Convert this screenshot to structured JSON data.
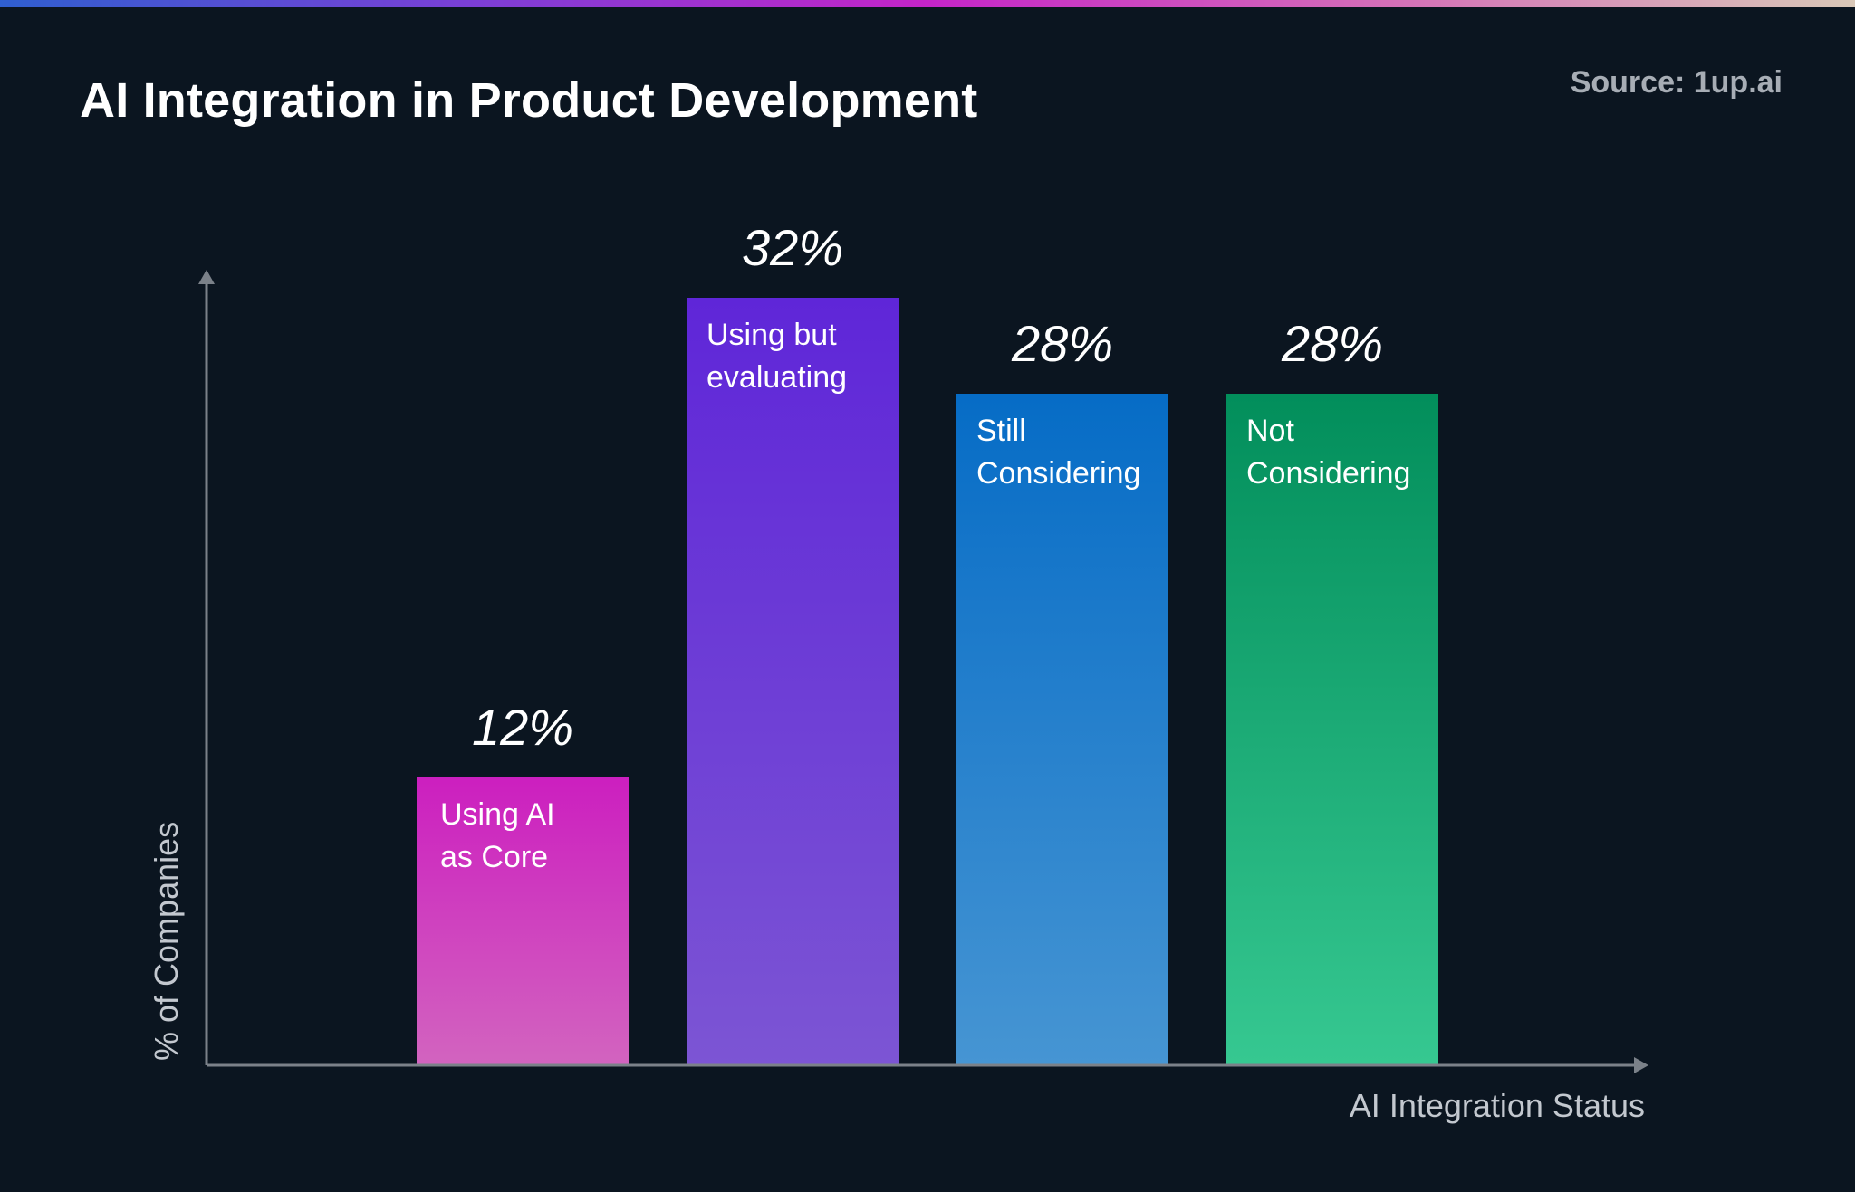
{
  "title": "AI Integration in Product Development",
  "source": "Source: 1up.ai",
  "chart_data": {
    "type": "bar",
    "title": "AI Integration in Product Development",
    "xlabel": "AI Integration Status",
    "ylabel": "% of Companies",
    "ylim": [
      0,
      50
    ],
    "grid": false,
    "categories": [
      [
        "Using AI",
        "as Core"
      ],
      [
        "Using but",
        "evaluating"
      ],
      [
        "Still",
        "Considering"
      ],
      [
        "Not",
        "Considering"
      ]
    ],
    "values": [
      12,
      32,
      28,
      28
    ],
    "value_labels": [
      "12%",
      "32%",
      "28%",
      "28%"
    ],
    "colors": [
      [
        "#cc1fbf",
        "#d264bf"
      ],
      [
        "#5f26d8",
        "#7c55d4"
      ],
      [
        "#066cc6",
        "#4695d3"
      ],
      [
        "#028e5b",
        "#36c891"
      ]
    ],
    "axis_color": "#7b8189"
  }
}
